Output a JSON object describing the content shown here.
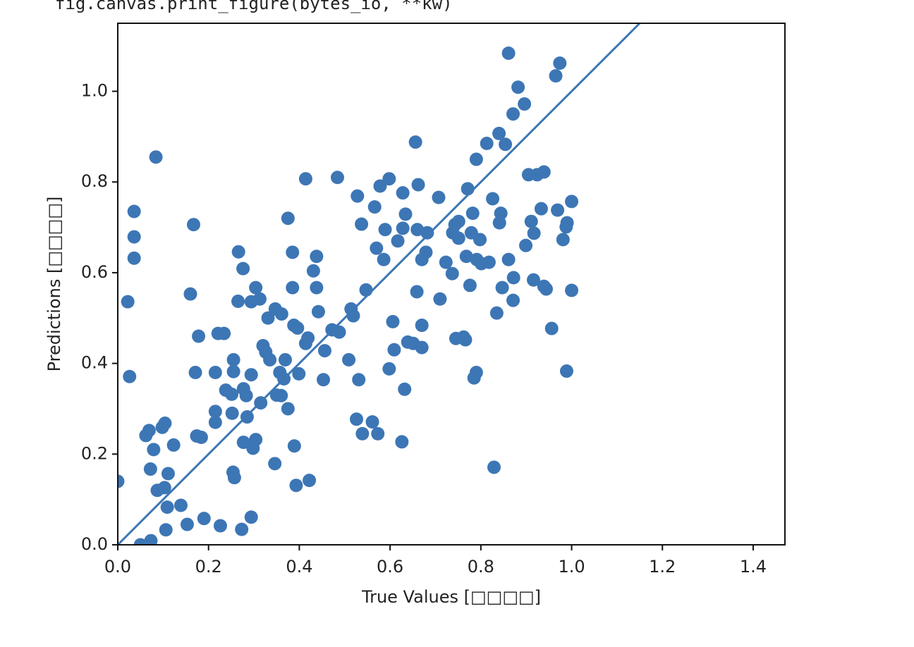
{
  "code_line": "fig.canvas.print_figure(bytes_io, **kw)",
  "chart_data": {
    "type": "scatter",
    "x_label": "True Values [□□□□]",
    "y_label": "Predictions [□□□□]",
    "xlim": [
      0,
      1.47
    ],
    "ylim": [
      0,
      1.15
    ],
    "xticks": [
      {
        "value": 0,
        "label": "0.0"
      },
      {
        "value": 0.2,
        "label": "0.2"
      },
      {
        "value": 0.4,
        "label": "0.4"
      },
      {
        "value": 0.6,
        "label": "0.6"
      },
      {
        "value": 0.8,
        "label": "0.8"
      },
      {
        "value": 1.0,
        "label": "1.0"
      },
      {
        "value": 1.2,
        "label": "1.2"
      },
      {
        "value": 1.4,
        "label": "1.4"
      }
    ],
    "yticks": [
      {
        "value": 0,
        "label": "0.0"
      },
      {
        "value": 0.2,
        "label": "0.2"
      },
      {
        "value": 0.4,
        "label": "0.4"
      },
      {
        "value": 0.6,
        "label": "0.6"
      },
      {
        "value": 0.8,
        "label": "0.8"
      },
      {
        "value": 1.0,
        "label": "1.0"
      }
    ],
    "grid": false,
    "series": [
      {
        "type": "scatter",
        "color": "#3d76b5",
        "x": [
          0.0,
          0.022,
          0.026,
          0.036,
          0.036,
          0.036,
          0.084,
          0.05,
          0.073,
          0.062,
          0.069,
          0.072,
          0.079,
          0.087,
          0.098,
          0.104,
          0.103,
          0.109,
          0.111,
          0.106,
          0.123,
          0.139,
          0.153,
          0.167,
          0.16,
          0.171,
          0.178,
          0.174,
          0.184,
          0.19,
          0.215,
          0.215,
          0.215,
          0.221,
          0.234,
          0.226,
          0.238,
          0.251,
          0.252,
          0.255,
          0.255,
          0.254,
          0.257,
          0.265,
          0.266,
          0.276,
          0.277,
          0.283,
          0.285,
          0.277,
          0.273,
          0.294,
          0.294,
          0.304,
          0.304,
          0.298,
          0.294,
          0.313,
          0.315,
          0.32,
          0.326,
          0.331,
          0.335,
          0.347,
          0.346,
          0.35,
          0.357,
          0.36,
          0.361,
          0.366,
          0.369,
          0.375,
          0.375,
          0.385,
          0.385,
          0.388,
          0.396,
          0.389,
          0.393,
          0.399,
          0.414,
          0.414,
          0.419,
          0.422,
          0.431,
          0.438,
          0.438,
          0.442,
          0.456,
          0.453,
          0.472,
          0.484,
          0.488,
          0.509,
          0.514,
          0.519,
          0.526,
          0.531,
          0.528,
          0.537,
          0.539,
          0.547,
          0.561,
          0.566,
          0.57,
          0.573,
          0.578,
          0.586,
          0.589,
          0.598,
          0.598,
          0.606,
          0.609,
          0.617,
          0.628,
          0.626,
          0.628,
          0.634,
          0.632,
          0.639,
          0.651,
          0.656,
          0.659,
          0.662,
          0.66,
          0.67,
          0.67,
          0.67,
          0.679,
          0.682,
          0.707,
          0.71,
          0.723,
          0.737,
          0.738,
          0.743,
          0.745,
          0.751,
          0.751,
          0.762,
          0.766,
          0.768,
          0.771,
          0.776,
          0.779,
          0.782,
          0.785,
          0.79,
          0.79,
          0.791,
          0.798,
          0.801,
          0.813,
          0.818,
          0.826,
          0.829,
          0.835,
          0.84,
          0.841,
          0.844,
          0.847,
          0.854,
          0.861,
          0.861,
          0.871,
          0.871,
          0.872,
          0.882,
          0.896,
          0.899,
          0.905,
          0.911,
          0.917,
          0.916,
          0.924,
          0.933,
          0.939,
          0.939,
          0.944,
          0.956,
          0.965,
          0.974,
          0.969,
          0.981,
          0.988,
          0.99,
          0.989,
          1.0,
          1.0
        ],
        "values": [
          0.14,
          0.536,
          0.371,
          0.735,
          0.679,
          0.632,
          0.855,
          0.0,
          0.009,
          0.241,
          0.252,
          0.167,
          0.21,
          0.12,
          0.259,
          0.268,
          0.126,
          0.083,
          0.157,
          0.033,
          0.22,
          0.087,
          0.045,
          0.706,
          0.553,
          0.38,
          0.46,
          0.24,
          0.237,
          0.058,
          0.294,
          0.27,
          0.38,
          0.466,
          0.466,
          0.042,
          0.341,
          0.332,
          0.29,
          0.408,
          0.382,
          0.16,
          0.148,
          0.537,
          0.646,
          0.609,
          0.344,
          0.329,
          0.282,
          0.226,
          0.034,
          0.375,
          0.536,
          0.567,
          0.232,
          0.213,
          0.061,
          0.542,
          0.313,
          0.439,
          0.425,
          0.5,
          0.408,
          0.52,
          0.179,
          0.33,
          0.38,
          0.329,
          0.509,
          0.366,
          0.408,
          0.72,
          0.3,
          0.645,
          0.567,
          0.484,
          0.478,
          0.218,
          0.131,
          0.377,
          0.807,
          0.444,
          0.456,
          0.142,
          0.604,
          0.636,
          0.567,
          0.514,
          0.428,
          0.364,
          0.474,
          0.81,
          0.469,
          0.408,
          0.52,
          0.505,
          0.277,
          0.364,
          0.769,
          0.707,
          0.245,
          0.562,
          0.271,
          0.745,
          0.654,
          0.245,
          0.791,
          0.629,
          0.695,
          0.807,
          0.388,
          0.492,
          0.43,
          0.67,
          0.776,
          0.227,
          0.698,
          0.729,
          0.343,
          0.447,
          0.444,
          0.888,
          0.558,
          0.794,
          0.695,
          0.484,
          0.435,
          0.629,
          0.645,
          0.688,
          0.766,
          0.542,
          0.623,
          0.598,
          0.688,
          0.706,
          0.455,
          0.713,
          0.676,
          0.458,
          0.452,
          0.636,
          0.785,
          0.572,
          0.688,
          0.731,
          0.368,
          0.38,
          0.85,
          0.629,
          0.673,
          0.62,
          0.885,
          0.623,
          0.763,
          0.171,
          0.511,
          0.907,
          0.71,
          0.731,
          0.567,
          0.883,
          1.084,
          0.629,
          0.95,
          0.539,
          0.589,
          1.009,
          0.972,
          0.66,
          0.816,
          0.713,
          0.687,
          0.584,
          0.816,
          0.741,
          0.822,
          0.57,
          0.564,
          0.477,
          1.034,
          1.062,
          0.738,
          0.673,
          0.701,
          0.71,
          0.383,
          0.757,
          0.561
        ]
      },
      {
        "type": "line",
        "color": "#3d76b5",
        "x": [
          0,
          1.15
        ],
        "values": [
          0,
          1.15
        ]
      }
    ]
  }
}
